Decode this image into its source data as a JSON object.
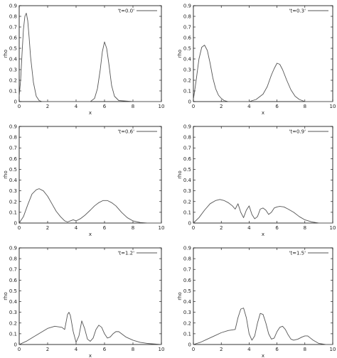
{
  "chart_data": [
    {
      "type": "line",
      "xlabel": "x",
      "ylabel": "rho",
      "xlim": [
        0,
        10
      ],
      "ylim": [
        0,
        0.9
      ],
      "xticks": [
        0,
        2,
        4,
        6,
        8,
        10
      ],
      "yticks": [
        0,
        0.1,
        0.2,
        0.3,
        0.4,
        0.5,
        0.6,
        0.7,
        0.8,
        0.9
      ],
      "legend_position": "top-right",
      "series": [
        {
          "name": "'t=0.0'",
          "x": [
            0,
            0.1,
            0.2,
            0.3,
            0.4,
            0.5,
            0.6,
            0.7,
            0.8,
            1.0,
            1.2,
            1.4,
            1.6,
            2.0,
            3.0,
            4.0,
            5.0,
            5.3,
            5.5,
            5.7,
            5.85,
            6.0,
            6.15,
            6.3,
            6.5,
            6.7,
            7.0,
            8.0,
            10.0
          ],
          "values": [
            0.05,
            0.2,
            0.45,
            0.68,
            0.8,
            0.83,
            0.76,
            0.6,
            0.42,
            0.18,
            0.05,
            0.01,
            0.0,
            0.0,
            0.0,
            0.0,
            0.0,
            0.03,
            0.12,
            0.3,
            0.47,
            0.56,
            0.5,
            0.36,
            0.15,
            0.05,
            0.01,
            0.0,
            0.0
          ]
        }
      ]
    },
    {
      "type": "line",
      "xlabel": "x",
      "ylabel": "rho",
      "xlim": [
        0,
        10
      ],
      "ylim": [
        0,
        0.9
      ],
      "xticks": [
        0,
        2,
        4,
        6,
        8,
        10
      ],
      "yticks": [
        0,
        0.1,
        0.2,
        0.3,
        0.4,
        0.5,
        0.6,
        0.7,
        0.8,
        0.9
      ],
      "legend_position": "top-right",
      "series": [
        {
          "name": "'t=0.3'",
          "x": [
            0,
            0.2,
            0.4,
            0.6,
            0.8,
            1.0,
            1.2,
            1.4,
            1.6,
            1.8,
            2.0,
            2.2,
            2.5,
            3.0,
            4.0,
            4.5,
            5.0,
            5.3,
            5.6,
            5.8,
            6.0,
            6.2,
            6.4,
            6.7,
            7.0,
            7.3,
            7.6,
            8.0,
            10.0
          ],
          "values": [
            0.02,
            0.2,
            0.4,
            0.51,
            0.53,
            0.48,
            0.36,
            0.22,
            0.12,
            0.06,
            0.03,
            0.01,
            0.0,
            0.0,
            0.0,
            0.02,
            0.07,
            0.14,
            0.25,
            0.31,
            0.36,
            0.35,
            0.3,
            0.2,
            0.11,
            0.05,
            0.02,
            0.0,
            0.0
          ]
        }
      ]
    },
    {
      "type": "line",
      "xlabel": "x",
      "ylabel": "rho",
      "xlim": [
        0,
        10
      ],
      "ylim": [
        0,
        0.9
      ],
      "xticks": [
        0,
        2,
        4,
        6,
        8,
        10
      ],
      "yticks": [
        0,
        0.1,
        0.2,
        0.3,
        0.4,
        0.5,
        0.6,
        0.7,
        0.8,
        0.9
      ],
      "legend_position": "top-right",
      "series": [
        {
          "name": "'t=0.6'",
          "x": [
            0,
            0.3,
            0.6,
            0.9,
            1.2,
            1.4,
            1.7,
            2.0,
            2.3,
            2.6,
            2.9,
            3.2,
            3.4,
            3.6,
            3.8,
            4.0,
            4.3,
            4.6,
            5.0,
            5.3,
            5.6,
            5.9,
            6.2,
            6.5,
            6.8,
            7.2,
            7.6,
            8.0,
            8.5,
            9.0,
            10.0
          ],
          "values": [
            0.0,
            0.06,
            0.17,
            0.27,
            0.31,
            0.32,
            0.3,
            0.25,
            0.18,
            0.11,
            0.06,
            0.02,
            0.01,
            0.02,
            0.03,
            0.02,
            0.04,
            0.07,
            0.12,
            0.16,
            0.19,
            0.21,
            0.21,
            0.19,
            0.16,
            0.1,
            0.05,
            0.02,
            0.005,
            0.0,
            0.0
          ]
        }
      ]
    },
    {
      "type": "line",
      "xlabel": "x",
      "ylabel": "rho",
      "xlim": [
        0,
        10
      ],
      "ylim": [
        0,
        0.9
      ],
      "xticks": [
        0,
        2,
        4,
        6,
        8,
        10
      ],
      "yticks": [
        0,
        0.1,
        0.2,
        0.3,
        0.4,
        0.5,
        0.6,
        0.7,
        0.8,
        0.9
      ],
      "legend_position": "top-right",
      "series": [
        {
          "name": "'t=0.9'",
          "x": [
            0,
            0.4,
            0.8,
            1.2,
            1.6,
            1.9,
            2.2,
            2.5,
            2.8,
            3.0,
            3.2,
            3.4,
            3.6,
            3.8,
            4.0,
            4.2,
            4.4,
            4.6,
            4.8,
            5.0,
            5.2,
            5.4,
            5.6,
            5.8,
            6.0,
            6.2,
            6.5,
            6.8,
            7.2,
            7.6,
            8.0,
            8.5,
            9.0,
            9.5,
            10.0
          ],
          "values": [
            0.0,
            0.05,
            0.12,
            0.18,
            0.21,
            0.22,
            0.21,
            0.19,
            0.16,
            0.13,
            0.18,
            0.1,
            0.05,
            0.12,
            0.16,
            0.08,
            0.04,
            0.06,
            0.13,
            0.14,
            0.12,
            0.08,
            0.1,
            0.14,
            0.15,
            0.155,
            0.15,
            0.13,
            0.1,
            0.06,
            0.03,
            0.01,
            0.0,
            0.0,
            0.0
          ]
        }
      ]
    },
    {
      "type": "line",
      "xlabel": "x",
      "ylabel": "rho",
      "xlim": [
        0,
        10
      ],
      "ylim": [
        0,
        0.9
      ],
      "xticks": [
        0,
        2,
        4,
        6,
        8,
        10
      ],
      "yticks": [
        0,
        0.1,
        0.2,
        0.3,
        0.4,
        0.5,
        0.6,
        0.7,
        0.8,
        0.9
      ],
      "legend_position": "top-right",
      "series": [
        {
          "name": "'t=1.2'",
          "x": [
            0,
            0.5,
            1.0,
            1.5,
            2.0,
            2.5,
            3.0,
            3.2,
            3.4,
            3.5,
            3.6,
            3.8,
            4.0,
            4.2,
            4.4,
            4.6,
            4.8,
            5.0,
            5.2,
            5.4,
            5.6,
            5.8,
            6.0,
            6.2,
            6.4,
            6.6,
            6.8,
            7.0,
            7.2,
            7.5,
            8.0,
            8.5,
            9.0,
            9.5,
            10.0
          ],
          "values": [
            0.0,
            0.03,
            0.07,
            0.11,
            0.15,
            0.17,
            0.16,
            0.14,
            0.28,
            0.3,
            0.27,
            0.12,
            0.02,
            0.08,
            0.22,
            0.15,
            0.05,
            0.03,
            0.06,
            0.14,
            0.18,
            0.16,
            0.1,
            0.06,
            0.07,
            0.1,
            0.12,
            0.12,
            0.1,
            0.07,
            0.04,
            0.02,
            0.01,
            0.005,
            0.0
          ]
        }
      ]
    },
    {
      "type": "line",
      "xlabel": "x",
      "ylabel": "rho",
      "xlim": [
        0,
        10
      ],
      "ylim": [
        0,
        0.9
      ],
      "xticks": [
        0,
        2,
        4,
        6,
        8,
        10
      ],
      "yticks": [
        0,
        0.1,
        0.2,
        0.3,
        0.4,
        0.5,
        0.6,
        0.7,
        0.8,
        0.9
      ],
      "legend_position": "top-right",
      "series": [
        {
          "name": "'t=1.5'",
          "x": [
            0,
            0.5,
            1.0,
            1.5,
            2.0,
            2.5,
            3.0,
            3.2,
            3.4,
            3.6,
            3.8,
            4.0,
            4.2,
            4.4,
            4.6,
            4.8,
            5.0,
            5.2,
            5.4,
            5.6,
            5.8,
            6.0,
            6.2,
            6.4,
            6.6,
            6.8,
            7.0,
            7.2,
            7.5,
            7.8,
            8.0,
            8.2,
            8.4,
            8.6,
            9.0,
            9.5,
            10.0
          ],
          "values": [
            0.0,
            0.02,
            0.05,
            0.08,
            0.11,
            0.13,
            0.14,
            0.25,
            0.33,
            0.34,
            0.25,
            0.1,
            0.04,
            0.08,
            0.2,
            0.29,
            0.28,
            0.2,
            0.1,
            0.05,
            0.06,
            0.12,
            0.16,
            0.17,
            0.14,
            0.09,
            0.05,
            0.04,
            0.05,
            0.07,
            0.08,
            0.08,
            0.06,
            0.04,
            0.01,
            0.0,
            0.0
          ]
        }
      ]
    }
  ]
}
